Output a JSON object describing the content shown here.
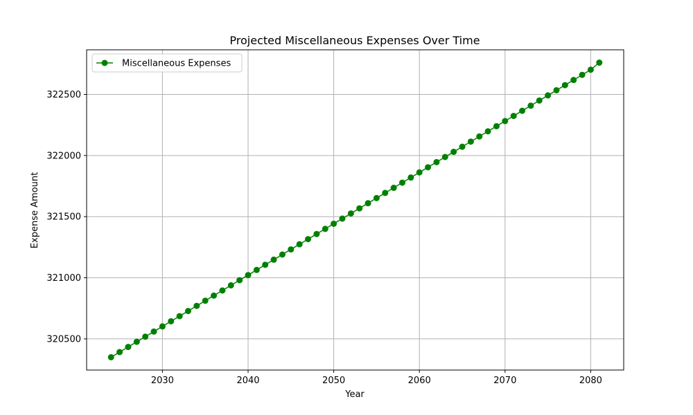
{
  "chart_data": {
    "type": "line",
    "title": "Projected Miscellaneous Expenses Over Time",
    "xlabel": "Year",
    "ylabel": "Expense Amount",
    "xlim": [
      2021.15,
      2083.85
    ],
    "ylim": [
      320245,
      322865
    ],
    "grid": true,
    "legend_position": "top-left",
    "x_ticks": [
      2030,
      2040,
      2050,
      2060,
      2070,
      2080
    ],
    "y_ticks": [
      320500,
      321000,
      321500,
      322000,
      322500
    ],
    "series": [
      {
        "name": "Miscellaneous Expenses",
        "color": "#008000",
        "marker": "circle",
        "x": [
          2024,
          2025,
          2026,
          2027,
          2028,
          2029,
          2030,
          2031,
          2032,
          2033,
          2034,
          2035,
          2036,
          2037,
          2038,
          2039,
          2040,
          2041,
          2042,
          2043,
          2044,
          2045,
          2046,
          2047,
          2048,
          2049,
          2050,
          2051,
          2052,
          2053,
          2054,
          2055,
          2056,
          2057,
          2058,
          2059,
          2060,
          2061,
          2062,
          2063,
          2064,
          2065,
          2066,
          2067,
          2068,
          2069,
          2070,
          2071,
          2072,
          2073,
          2074,
          2075,
          2076,
          2077,
          2078,
          2079,
          2080,
          2081
        ],
        "values": [
          320350,
          320392,
          320434,
          320476,
          320518,
          320560,
          320602,
          320644,
          320686,
          320728,
          320770,
          320812,
          320854,
          320896,
          320938,
          320980,
          321022,
          321064,
          321106,
          321148,
          321190,
          321232,
          321274,
          321316,
          321358,
          321400,
          321442,
          321484,
          321526,
          321568,
          321610,
          321652,
          321694,
          321736,
          321778,
          321820,
          321862,
          321904,
          321946,
          321988,
          322030,
          322072,
          322114,
          322156,
          322198,
          322240,
          322282,
          322324,
          322366,
          322408,
          322450,
          322492,
          322534,
          322576,
          322618,
          322660,
          322702,
          322760
        ]
      }
    ]
  }
}
